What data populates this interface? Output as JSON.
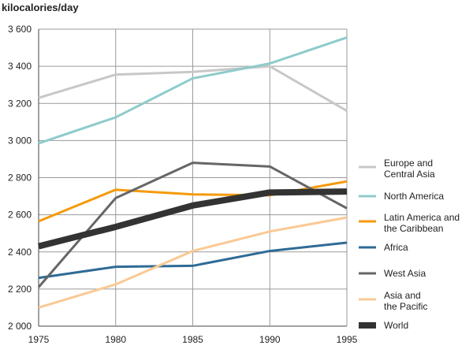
{
  "chart_data": {
    "type": "line",
    "title": "",
    "xlabel": "",
    "ylabel": "kilocalories/day",
    "x": [
      1975,
      1980,
      1985,
      1990,
      1995
    ],
    "x_tick_labels": [
      "1975",
      "1980",
      "1985",
      "1990",
      "1995"
    ],
    "ylim": [
      2000,
      3600
    ],
    "y_ticks": [
      2000,
      2200,
      2400,
      2600,
      2800,
      3000,
      3200,
      3400,
      3600
    ],
    "y_tick_labels": [
      "2 000",
      "2 200",
      "2 400",
      "2 600",
      "2 800",
      "3 000",
      "3 200",
      "3 400",
      "3 600"
    ],
    "grid": true,
    "legend_position": "right",
    "series": [
      {
        "name": "Europe and Central Asia",
        "label_lines": [
          "Europe and",
          "Central Asia"
        ],
        "color": "#c8c8c8",
        "width": "normal",
        "values": [
          3230,
          3355,
          3370,
          3400,
          3160
        ]
      },
      {
        "name": "North America",
        "label_lines": [
          "North America"
        ],
        "color": "#8fcbcb",
        "width": "normal",
        "values": [
          2985,
          3125,
          3335,
          3415,
          3555
        ]
      },
      {
        "name": "Latin America and the Caribbean",
        "label_lines": [
          "Latin America and",
          "the Caribbean"
        ],
        "color": "#f59a0c",
        "width": "normal",
        "values": [
          2565,
          2735,
          2710,
          2705,
          2780
        ]
      },
      {
        "name": "Africa",
        "label_lines": [
          "Africa"
        ],
        "color": "#2e6b96",
        "width": "normal",
        "values": [
          2260,
          2320,
          2325,
          2405,
          2450
        ]
      },
      {
        "name": "West Asia",
        "label_lines": [
          "West Asia"
        ],
        "color": "#666666",
        "width": "normal",
        "values": [
          2210,
          2690,
          2880,
          2860,
          2635
        ]
      },
      {
        "name": "Asia and the Pacific",
        "label_lines": [
          "Asia and",
          "the Pacific"
        ],
        "color": "#f9c994",
        "width": "normal",
        "values": [
          2100,
          2225,
          2405,
          2510,
          2585
        ]
      },
      {
        "name": "World",
        "label_lines": [
          "World"
        ],
        "color": "#333333",
        "width": "thick",
        "values": [
          2430,
          2535,
          2650,
          2720,
          2725
        ]
      }
    ]
  }
}
